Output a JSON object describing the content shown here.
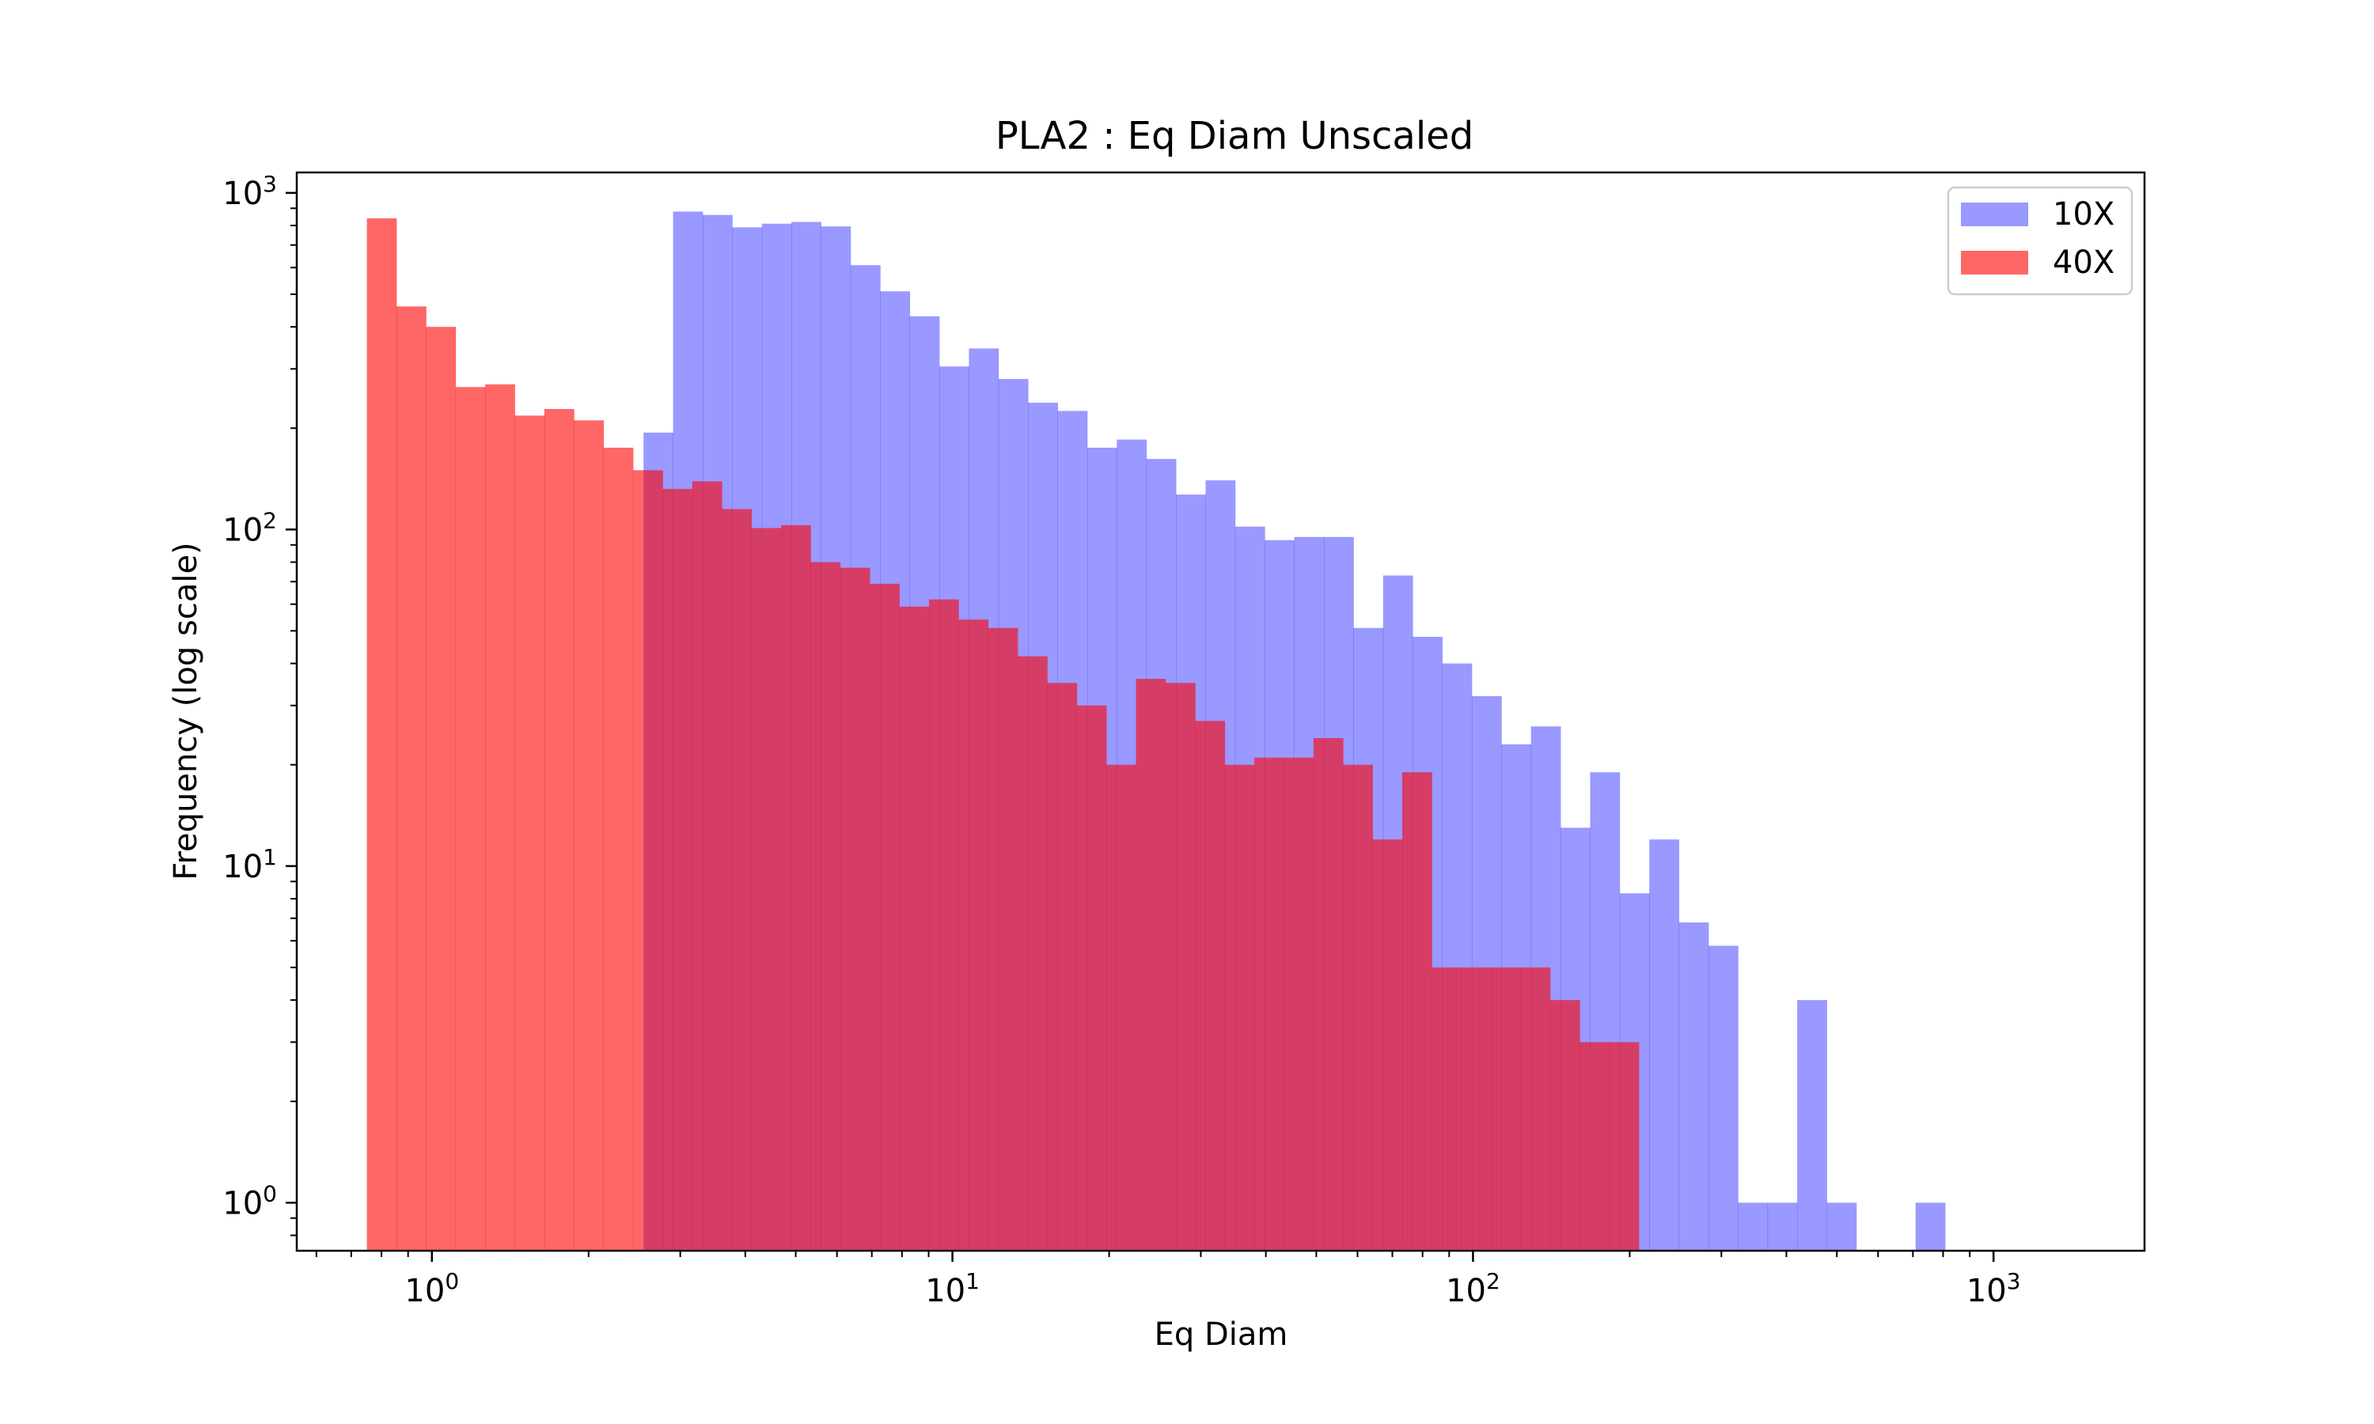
{
  "chart_data": {
    "type": "bar",
    "title": "PLA2 : Eq Diam Unscaled",
    "xlabel": "Eq Diam",
    "ylabel": "Frequency (log scale)",
    "xscale": "log",
    "yscale": "log",
    "xlim": [
      0.55,
      1950
    ],
    "ylim": [
      0.72,
      1150
    ],
    "grid": false,
    "legend_position": "top-right",
    "x_ticks": [
      {
        "base": "10",
        "exp": "0",
        "value": 1
      },
      {
        "base": "10",
        "exp": "1",
        "value": 10
      },
      {
        "base": "10",
        "exp": "2",
        "value": 100
      },
      {
        "base": "10",
        "exp": "3",
        "value": 1000
      }
    ],
    "y_ticks": [
      {
        "base": "10",
        "exp": "0",
        "value": 1
      },
      {
        "base": "10",
        "exp": "1",
        "value": 10
      },
      {
        "base": "10",
        "exp": "2",
        "value": 100
      },
      {
        "base": "10",
        "exp": "3",
        "value": 1000
      }
    ],
    "series": [
      {
        "name": "10X",
        "color": "#0000ff",
        "opacity": 0.4,
        "start": 2.55,
        "bin_factor": 1.1398,
        "values": [
          194,
          880,
          860,
          790,
          810,
          820,
          795,
          610,
          510,
          430,
          305,
          345,
          280,
          238,
          225,
          175,
          185,
          162,
          127,
          140,
          102,
          93,
          95,
          95,
          51,
          73,
          48,
          40,
          32,
          23,
          26,
          13,
          19,
          8.3,
          12,
          6.8,
          5.8,
          1,
          1,
          4,
          1,
          0,
          0,
          1
        ]
      },
      {
        "name": "40X",
        "color": "#ff0000",
        "opacity": 0.6,
        "start": 0.75,
        "bin_factor": 1.1398,
        "values": [
          840,
          460,
          400,
          265,
          270,
          218,
          228,
          211,
          175,
          150,
          132,
          139,
          115,
          101,
          103,
          80,
          77,
          69,
          59,
          62,
          54,
          51,
          42,
          35,
          30,
          20,
          36,
          35,
          27,
          20,
          21,
          21,
          24,
          20,
          12,
          19,
          5,
          5,
          5,
          5,
          4,
          3,
          3
        ]
      }
    ]
  },
  "legend": {
    "items": [
      {
        "label": "10X",
        "color": "#0000ff"
      },
      {
        "label": "40X",
        "color": "#ff0000"
      }
    ]
  }
}
